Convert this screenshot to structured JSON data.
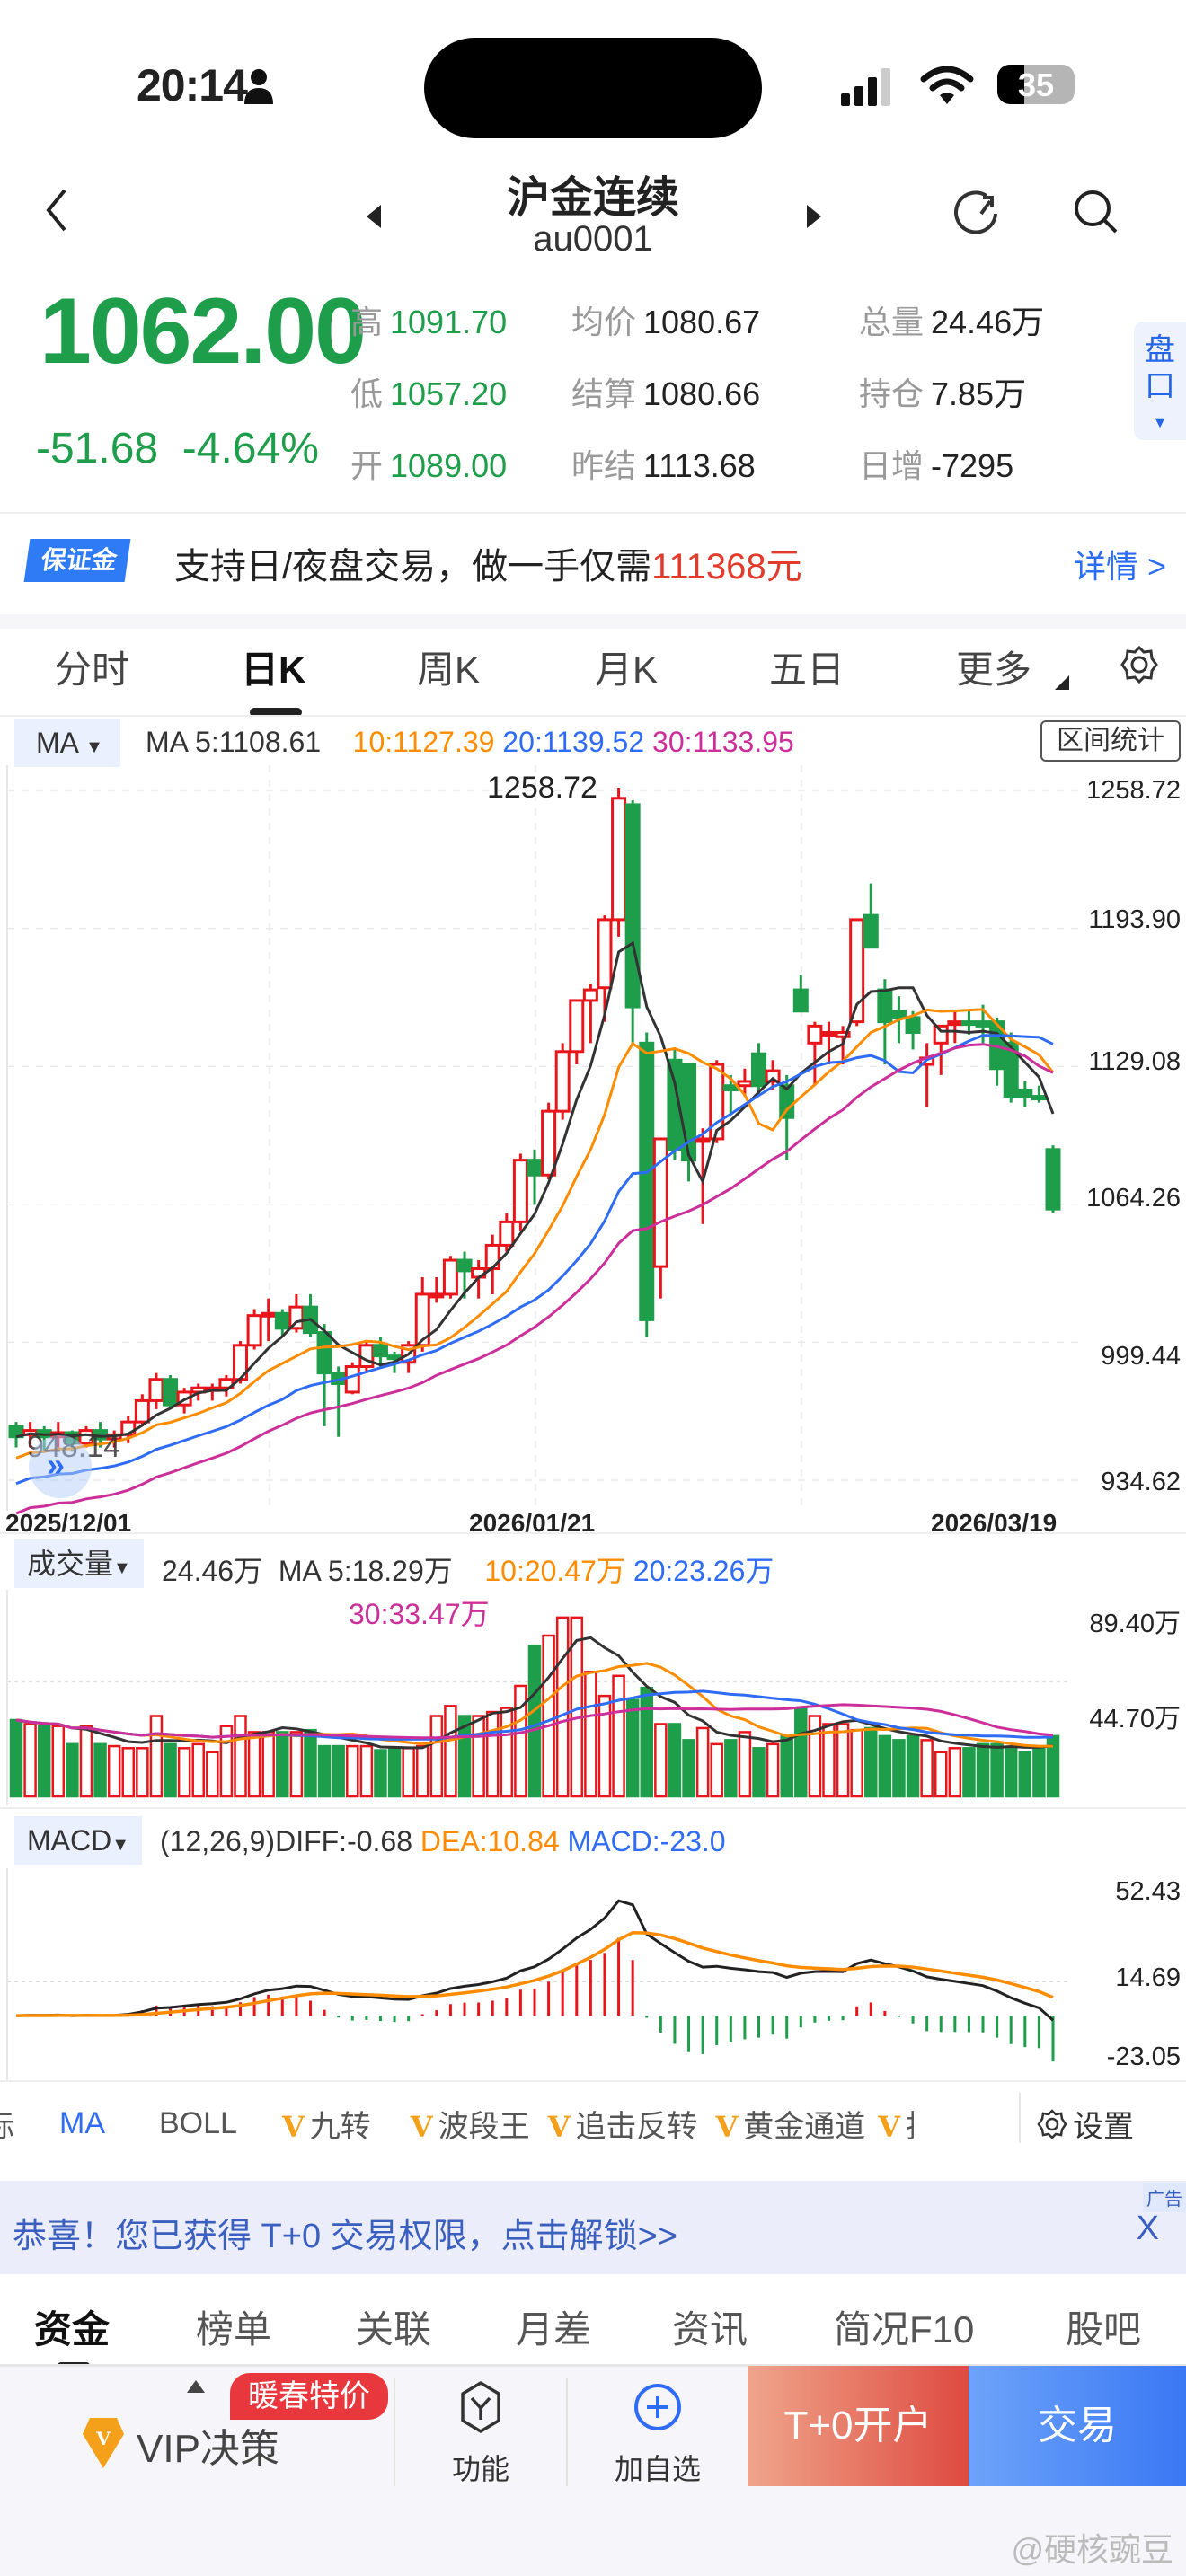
{
  "status_bar": {
    "time": "20:14",
    "battery": "35"
  },
  "nav": {
    "title": "沪金连续",
    "code": "au0001"
  },
  "quote": {
    "price": "1062.00",
    "change": "-51.68",
    "change_pct": "-4.64%",
    "fields": [
      {
        "label": "高",
        "value": "1091.70",
        "tone": "g"
      },
      {
        "label": "低",
        "value": "1057.20",
        "tone": "g"
      },
      {
        "label": "开",
        "value": "1089.00",
        "tone": "g"
      },
      {
        "label": "均价",
        "value": "1080.67",
        "tone": "d"
      },
      {
        "label": "结算",
        "value": "1080.66",
        "tone": "d"
      },
      {
        "label": "昨结",
        "value": "1113.68",
        "tone": "d"
      },
      {
        "label": "总量",
        "value": "24.46万",
        "tone": "d"
      },
      {
        "label": "持仓",
        "value": "7.85万",
        "tone": "d"
      },
      {
        "label": "日增",
        "value": "-7295",
        "tone": "d"
      }
    ],
    "pankou_label_1": "盘",
    "pankou_label_2": "口"
  },
  "margin_banner": {
    "badge": "保证金",
    "text": "支持日/夜盘交易，做一手仅需",
    "amount": "111368元",
    "link": "详情 >"
  },
  "period_tabs": [
    {
      "label": "分时",
      "active": false
    },
    {
      "label": "日K",
      "active": true
    },
    {
      "label": "周K",
      "active": false
    },
    {
      "label": "月K",
      "active": false
    },
    {
      "label": "五日",
      "active": false
    },
    {
      "label": "更多",
      "active": false
    }
  ],
  "colors": {
    "up": "#e8151b",
    "down": "#1e9e4a",
    "ma5": "#333333",
    "ma10": "#ff8c00",
    "ma20": "#2f6cf5",
    "ma30": "#cc2f9a",
    "brand_blue": "#2a6df2"
  },
  "main_chart": {
    "indicator_select": "MA",
    "ma5": "MA 5:1108.61",
    "ma10": "10:1127.39",
    "ma20": "20:1139.52",
    "ma30": "30:1133.95",
    "range_button": "区间统计",
    "y_labels": [
      "1258.72",
      "1193.90",
      "1129.08",
      "1064.26",
      "999.44",
      "934.62"
    ],
    "max_label": "1258.72",
    "min_label": "948.14",
    "x_labels": [
      "2025/12/01",
      "2026/01/21",
      "2026/03/19"
    ]
  },
  "volume_chart": {
    "indicator_select": "成交量",
    "vol": "24.46万",
    "ma5": "MA 5:18.29万",
    "ma10": "10:20.47万",
    "ma20": "20:23.26万",
    "ma30": "30:33.47万",
    "y_labels": [
      "89.40万",
      "44.70万"
    ]
  },
  "macd_chart": {
    "indicator_select": "MACD",
    "params": "(12,26,9)DIFF:-0.68",
    "dea": "DEA:10.84",
    "macd": "MACD:-23.0",
    "y_labels": [
      "52.43",
      "14.69",
      "-23.05"
    ]
  },
  "indicator_tabs": [
    "标",
    "MA",
    "BOLL",
    "九转",
    "波段王",
    "追击反转",
    "黄金通道",
    "抄"
  ],
  "settings_label": "设置",
  "ad": {
    "text": "恭喜！您已获得 T+0 交易权限，点击解锁>>",
    "tag": "广告",
    "close": "X"
  },
  "bottom_tabs": [
    {
      "label": "资金",
      "active": true
    },
    {
      "label": "榜单",
      "active": false
    },
    {
      "label": "关联",
      "active": false
    },
    {
      "label": "月差",
      "active": false
    },
    {
      "label": "资讯",
      "active": false
    },
    {
      "label": "简况F10",
      "active": false
    },
    {
      "label": "股吧",
      "active": false
    }
  ],
  "toolbar": {
    "vip": "VIP决策",
    "promo": "暖春特价",
    "function": "功能",
    "add_watch": "加自选",
    "open_account": "T+0开户",
    "trade": "交易"
  },
  "watermark": "@硬核豌豆",
  "chart_data": [
    {
      "type": "candlestick",
      "title": "沪金连续 au0001 日K",
      "x_labels": [
        "2025/12/01",
        "2026/01/21",
        "2026/03/19"
      ],
      "ylim": [
        934.62,
        1258.72
      ],
      "y_ticks": [
        1258.72,
        1193.9,
        1129.08,
        1064.26,
        999.44,
        934.62
      ],
      "annotations": {
        "max": 1258.72,
        "min": 948.14
      },
      "candles": [
        [
          960,
          962,
          950,
          955
        ],
        [
          956,
          962,
          950,
          958
        ],
        [
          958,
          960,
          948,
          955
        ],
        [
          955,
          962,
          950,
          957
        ],
        [
          957,
          958,
          948,
          952
        ],
        [
          952,
          960,
          950,
          958
        ],
        [
          958,
          962,
          950,
          954
        ],
        [
          954,
          958,
          950,
          956
        ],
        [
          956,
          965,
          952,
          962
        ],
        [
          962,
          975,
          960,
          972
        ],
        [
          972,
          985,
          968,
          982
        ],
        [
          982,
          984,
          968,
          970
        ],
        [
          970,
          978,
          966,
          976
        ],
        [
          976,
          980,
          972,
          978
        ],
        [
          978,
          980,
          972,
          978
        ],
        [
          978,
          984,
          974,
          982
        ],
        [
          982,
          1000,
          980,
          998
        ],
        [
          998,
          1015,
          996,
          1012
        ],
        [
          1012,
          1020,
          1000,
          1013
        ],
        [
          1013,
          1015,
          1002,
          1006
        ],
        [
          1006,
          1022,
          1004,
          1016
        ],
        [
          1016,
          1022,
          1002,
          1004
        ],
        [
          1004,
          1008,
          960,
          985
        ],
        [
          985,
          988,
          955,
          980
        ],
        [
          976,
          990,
          975,
          988
        ],
        [
          988,
          1000,
          985,
          998
        ],
        [
          998,
          1002,
          988,
          993
        ],
        [
          993,
          995,
          985,
          992
        ],
        [
          990,
          1000,
          985,
          998
        ],
        [
          998,
          1030,
          995,
          1022
        ],
        [
          1022,
          1030,
          1018,
          1022
        ],
        [
          1022,
          1040,
          1020,
          1038
        ],
        [
          1038,
          1042,
          1020,
          1033
        ],
        [
          1030,
          1038,
          1020,
          1034
        ],
        [
          1034,
          1050,
          1022,
          1045
        ],
        [
          1045,
          1060,
          1042,
          1056
        ],
        [
          1056,
          1088,
          1052,
          1085
        ],
        [
          1085,
          1090,
          1064,
          1078
        ],
        [
          1078,
          1112,
          1076,
          1108
        ],
        [
          1108,
          1140,
          1104,
          1136
        ],
        [
          1136,
          1160,
          1130,
          1160
        ],
        [
          1160,
          1168,
          1140,
          1165
        ],
        [
          1166,
          1200,
          1150,
          1198
        ],
        [
          1198,
          1260,
          1190,
          1255
        ],
        [
          1252,
          1254,
          1140,
          1157
        ],
        [
          1140,
          1145,
          1002,
          1010
        ],
        [
          1035,
          1095,
          1020,
          1095
        ],
        [
          1132,
          1138,
          1085,
          1090
        ],
        [
          1130,
          1130,
          1075,
          1085
        ],
        [
          1095,
          1100,
          1055,
          1095
        ],
        [
          1095,
          1132,
          1093,
          1130
        ],
        [
          1120,
          1125,
          1107,
          1118
        ],
        [
          1120,
          1128,
          1115,
          1122
        ],
        [
          1135,
          1140,
          1115,
          1120
        ],
        [
          1122,
          1132,
          1118,
          1127
        ],
        [
          1120,
          1125,
          1085,
          1105
        ],
        [
          1165,
          1172,
          1155,
          1155
        ],
        [
          1140,
          1150,
          1120,
          1148
        ],
        [
          1145,
          1150,
          1130,
          1145
        ],
        [
          1143,
          1148,
          1130,
          1145
        ],
        [
          1150,
          1198,
          1148,
          1198
        ],
        [
          1200,
          1215,
          1190,
          1185
        ],
        [
          1165,
          1170,
          1130,
          1150
        ],
        [
          1155,
          1162,
          1140,
          1152
        ],
        [
          1152,
          1155,
          1137,
          1145
        ],
        [
          1130,
          1140,
          1110,
          1133
        ],
        [
          1140,
          1148,
          1125,
          1148
        ],
        [
          1150,
          1155,
          1140,
          1150
        ],
        [
          1150,
          1155,
          1144,
          1149
        ],
        [
          1150,
          1158,
          1140,
          1148
        ],
        [
          1150,
          1152,
          1120,
          1128
        ],
        [
          1140,
          1145,
          1112,
          1115
        ],
        [
          1118,
          1122,
          1110,
          1115
        ],
        [
          1115,
          1120,
          1112,
          1114
        ],
        [
          1090,
          1092,
          1060,
          1062
        ]
      ],
      "ma_values": {
        "MA5": 1108.61,
        "MA10": 1127.39,
        "MA20": 1139.52,
        "MA30": 1133.95
      }
    },
    {
      "type": "bar",
      "title": "成交量",
      "ylim": [
        0,
        89.4
      ],
      "y_ticks": [
        89.4,
        44.7
      ],
      "unit": "万",
      "latest": 24.46,
      "ma_values": {
        "MA5": 18.29,
        "MA10": 20.47,
        "MA20": 23.26,
        "MA30": 33.47
      }
    },
    {
      "type": "line",
      "title": "MACD (12,26,9)",
      "ylim": [
        -23.05,
        52.43
      ],
      "y_ticks": [
        52.43,
        14.69,
        -23.05
      ],
      "latest": {
        "DIFF": -0.68,
        "DEA": 10.84,
        "MACD": -23.0
      }
    }
  ]
}
